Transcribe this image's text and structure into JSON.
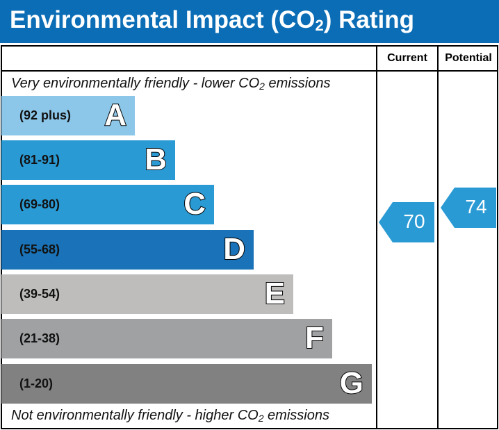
{
  "title": "Environmental Impact (CO",
  "title_sub": "2",
  "title_end": ") Rating",
  "columns": {
    "current": "Current",
    "potential": "Potential"
  },
  "top_note": {
    "pre": "Very environmentally friendly - lower CO",
    "sub": "2",
    "post": " emissions"
  },
  "bottom_note": {
    "pre": "Not environmentally friendly - higher CO",
    "sub": "2",
    "post": " emissions"
  },
  "chart_data": {
    "type": "bar",
    "bands": [
      {
        "letter": "A",
        "range": "(92 plus)",
        "color": "#8cc6e8"
      },
      {
        "letter": "B",
        "range": "(81-91)",
        "color": "#2a9ad4"
      },
      {
        "letter": "C",
        "range": "(69-80)",
        "color": "#2a9ad4"
      },
      {
        "letter": "D",
        "range": "(55-68)",
        "color": "#1a73b8"
      },
      {
        "letter": "E",
        "range": "(39-54)",
        "color": "#bebdbb"
      },
      {
        "letter": "F",
        "range": "(21-38)",
        "color": "#a0a1a3"
      },
      {
        "letter": "G",
        "range": "(1-20)",
        "color": "#818181"
      }
    ],
    "current": {
      "value": "70",
      "color": "#2a9ad4"
    },
    "potential": {
      "value": "74",
      "color": "#2a9ad4"
    }
  }
}
